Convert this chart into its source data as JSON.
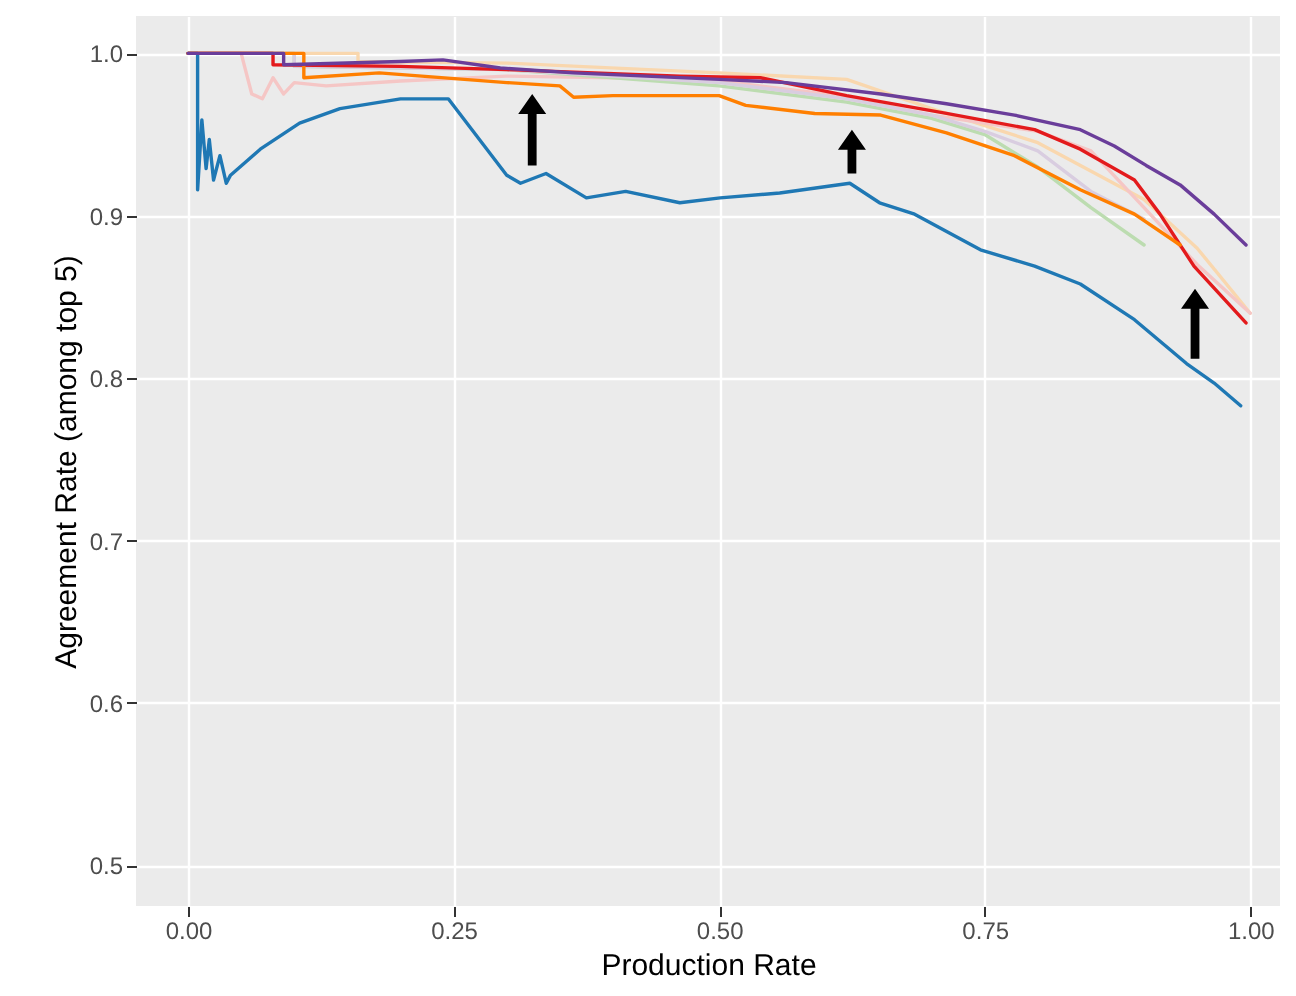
{
  "chart_data": {
    "type": "line",
    "xlabel": "Production Rate",
    "ylabel": "Agreement Rate (among top 5)",
    "xlim": [
      -0.049,
      1.028
    ],
    "ylim": [
      0.475,
      1.023
    ],
    "xticks": [
      {
        "value": 0,
        "label": "0.00"
      },
      {
        "value": 0.25,
        "label": "0.25"
      },
      {
        "value": 0.5,
        "label": "0.50"
      },
      {
        "value": 0.75,
        "label": "0.75"
      },
      {
        "value": 1,
        "label": "1.00"
      }
    ],
    "yticks": [
      {
        "value": 0.5,
        "label": "0.5"
      },
      {
        "value": 0.6,
        "label": "0.6"
      },
      {
        "value": 0.7,
        "label": "0.7"
      },
      {
        "value": 0.8,
        "label": "0.8"
      },
      {
        "value": 0.9,
        "label": "0.9"
      },
      {
        "value": 1,
        "label": "1.0"
      }
    ],
    "grid": true,
    "marker": "none",
    "line_style": "solid",
    "series": [
      {
        "color": "#f9d7ae",
        "x": [
          0,
          0.16,
          0.16,
          0.3,
          0.5,
          0.62,
          0.7,
          0.8,
          0.9,
          0.95,
          1.0
        ],
        "values": [
          1,
          1,
          0.995,
          0.994,
          0.988,
          0.984,
          0.966,
          0.945,
          0.91,
          0.88,
          0.84
        ]
      },
      {
        "color": "#f5c6c5",
        "x": [
          0,
          0.05,
          0.06,
          0.07,
          0.08,
          0.09,
          0.1,
          0.13,
          0.2,
          0.3,
          0.4,
          0.5,
          0.6,
          0.7,
          0.8,
          0.85,
          0.9,
          0.95,
          1.0
        ],
        "values": [
          1,
          1,
          0.975,
          0.972,
          0.985,
          0.975,
          0.982,
          0.98,
          0.983,
          0.986,
          0.985,
          0.983,
          0.975,
          0.962,
          0.952,
          0.94,
          0.905,
          0.87,
          0.84
        ]
      },
      {
        "color": "#bcdcb0",
        "x": [
          0,
          0.1,
          0.1,
          0.3,
          0.5,
          0.62,
          0.7,
          0.75,
          0.8,
          0.85,
          0.9
        ],
        "values": [
          1,
          1,
          0.992,
          0.99,
          0.98,
          0.97,
          0.96,
          0.95,
          0.93,
          0.905,
          0.882
        ]
      },
      {
        "color": "#d9cde0",
        "x": [
          0,
          0.1,
          0.1,
          0.3,
          0.5,
          0.62,
          0.7,
          0.75,
          0.8,
          0.85,
          0.9
        ],
        "values": [
          1,
          1,
          0.992,
          0.99,
          0.982,
          0.972,
          0.962,
          0.952,
          0.94,
          0.915,
          0.898
        ]
      },
      {
        "color": "#1f78b4",
        "x": [
          0,
          0.009,
          0.009,
          0.013,
          0.017,
          0.02,
          0.024,
          0.03,
          0.036,
          0.04,
          0.068,
          0.105,
          0.143,
          0.2,
          0.245,
          0.3,
          0.313,
          0.337,
          0.375,
          0.412,
          0.463,
          0.501,
          0.557,
          0.623,
          0.651,
          0.684,
          0.746,
          0.797,
          0.84,
          0.891,
          0.94,
          0.966,
          0.991
        ],
        "values": [
          1,
          1,
          0.916,
          0.959,
          0.929,
          0.947,
          0.922,
          0.937,
          0.92,
          0.925,
          0.941,
          0.957,
          0.966,
          0.972,
          0.972,
          0.925,
          0.92,
          0.926,
          0.911,
          0.915,
          0.908,
          0.911,
          0.914,
          0.92,
          0.908,
          0.901,
          0.879,
          0.869,
          0.858,
          0.836,
          0.809,
          0.797,
          0.783
        ]
      },
      {
        "color": "#e31a1c",
        "x": [
          0,
          0.08,
          0.08,
          0.2,
          0.3,
          0.463,
          0.539,
          0.62,
          0.714,
          0.797,
          0.84,
          0.891,
          0.915,
          0.947,
          0.996
        ],
        "values": [
          1,
          1,
          0.993,
          0.992,
          0.99,
          0.986,
          0.985,
          0.974,
          0.963,
          0.953,
          0.941,
          0.922,
          0.901,
          0.869,
          0.834
        ]
      },
      {
        "color": "#ff7f00",
        "x": [
          0,
          0.109,
          0.109,
          0.18,
          0.3,
          0.35,
          0.363,
          0.4,
          0.5,
          0.525,
          0.59,
          0.652,
          0.714,
          0.778,
          0.84,
          0.891,
          0.934
        ],
        "values": [
          1,
          1,
          0.985,
          0.988,
          0.982,
          0.98,
          0.973,
          0.974,
          0.974,
          0.968,
          0.963,
          0.962,
          0.951,
          0.937,
          0.916,
          0.901,
          0.882
        ]
      },
      {
        "color": "#6a3d9a",
        "x": [
          0,
          0.09,
          0.09,
          0.2,
          0.24,
          0.294,
          0.363,
          0.5,
          0.563,
          0.652,
          0.714,
          0.778,
          0.84,
          0.872,
          0.902,
          0.934,
          0.966,
          0.996
        ],
        "values": [
          1,
          1,
          0.993,
          0.995,
          0.996,
          0.991,
          0.988,
          0.984,
          0.982,
          0.975,
          0.969,
          0.962,
          0.953,
          0.943,
          0.931,
          0.919,
          0.901,
          0.882
        ]
      }
    ]
  }
}
